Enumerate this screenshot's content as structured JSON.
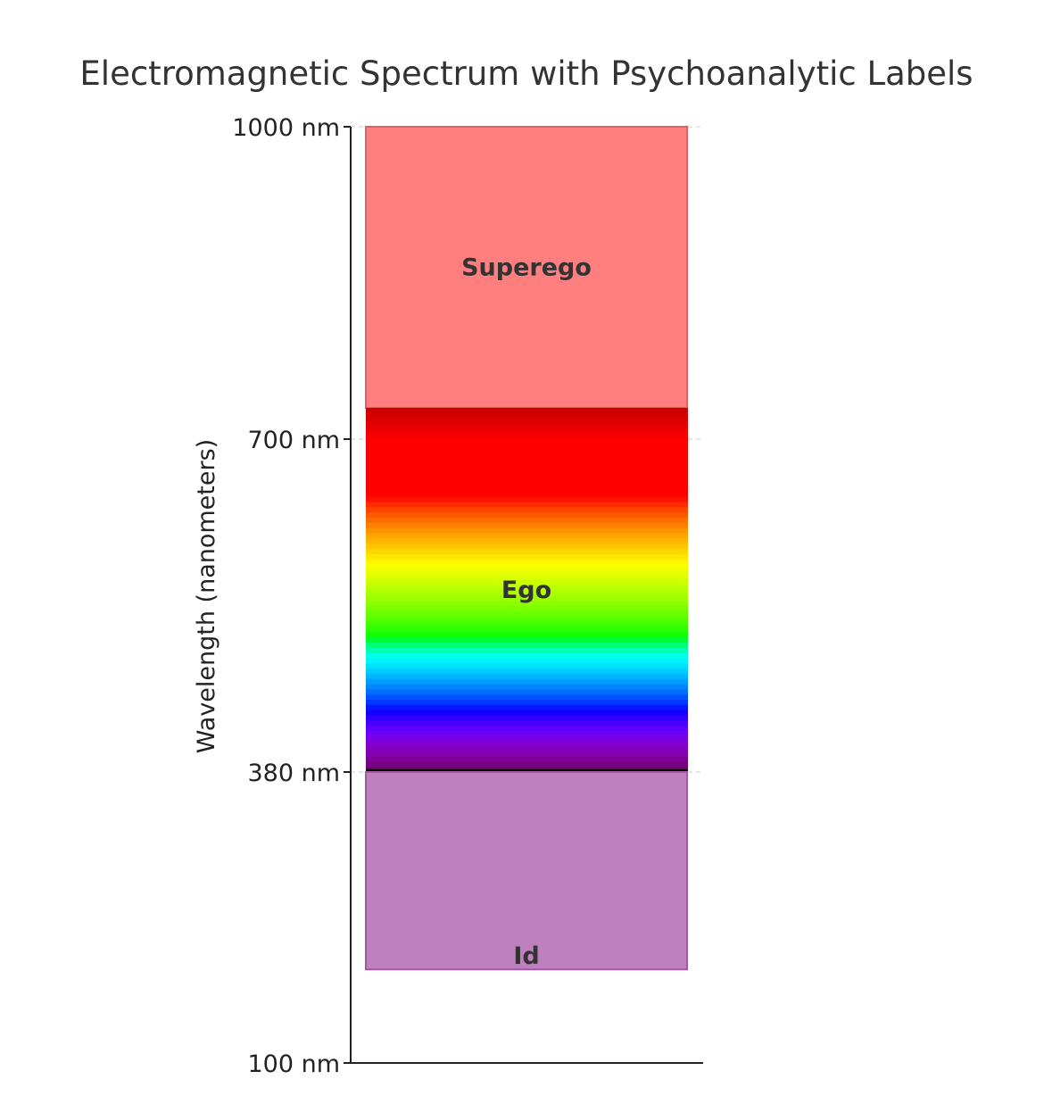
{
  "chart_data": {
    "type": "bar",
    "title": "Electromagnetic Spectrum with Psychoanalytic Labels",
    "xlabel": "",
    "ylabel": "Wavelength (nanometers)",
    "ylim": [
      100,
      1000
    ],
    "yticks": [
      {
        "value": 100,
        "label": "100 nm"
      },
      {
        "value": 380,
        "label": "380 nm"
      },
      {
        "value": 700,
        "label": "700 nm"
      },
      {
        "value": 1000,
        "label": "1000 nm"
      }
    ],
    "grid": "horizontal dashed at ticks",
    "bands": [
      {
        "name": "Superego",
        "from": 730,
        "to": 1000,
        "color": "#ff7f7f",
        "edge": "#e06060"
      },
      {
        "name": "Ego",
        "from": 380,
        "to": 730,
        "color": "spectrum"
      },
      {
        "name": "Id",
        "from": 190,
        "to": 380,
        "color": "#bf80bf",
        "edge": "#a35aa3"
      }
    ],
    "ego_spectrum_nm": [
      380,
      730
    ]
  }
}
